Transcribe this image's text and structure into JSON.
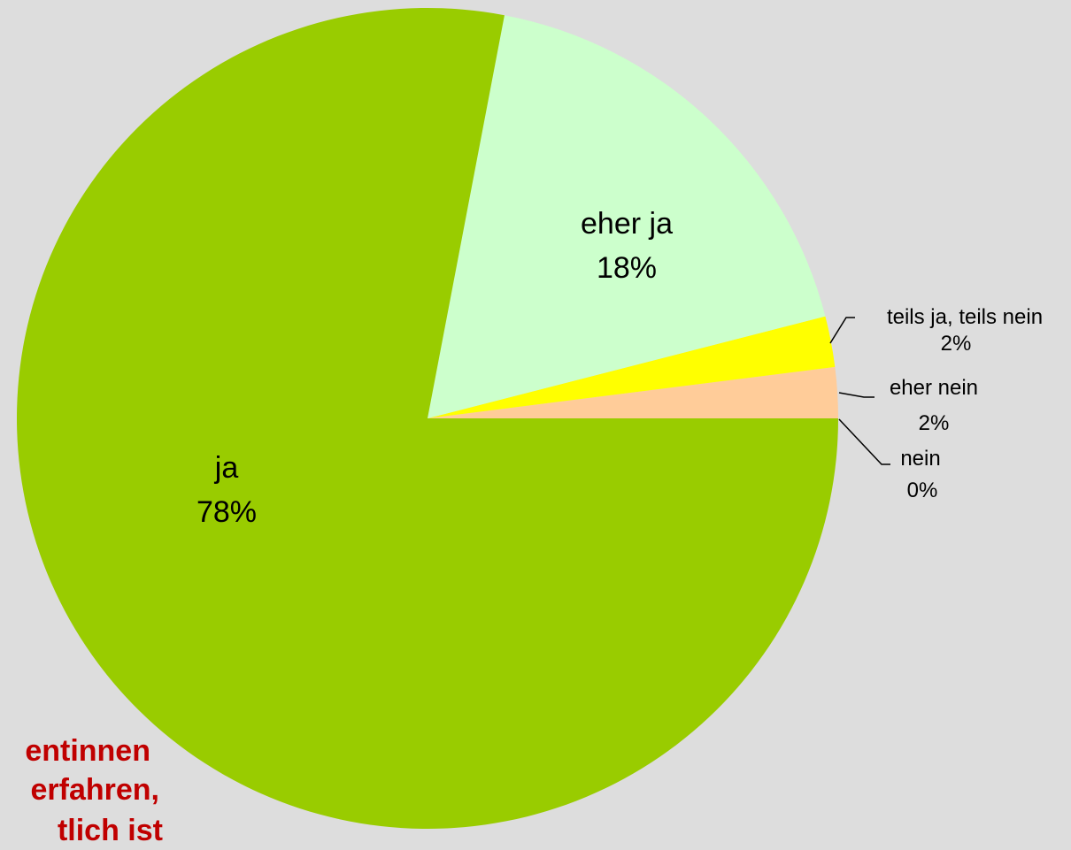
{
  "chart_data": {
    "type": "pie",
    "slices": [
      {
        "label": "ja",
        "value": 78,
        "pct_label": "78%",
        "color": "#99cc00"
      },
      {
        "label": "eher ja",
        "value": 18,
        "pct_label": "18%",
        "color": "#ccffcc"
      },
      {
        "label": "teils ja, teils nein",
        "value": 2,
        "pct_label": "2%",
        "color": "#ffff00"
      },
      {
        "label": "eher nein",
        "value": 2,
        "pct_label": "2%",
        "color": "#ffcc99"
      },
      {
        "label": "nein",
        "value": 0,
        "pct_label": "0%",
        "color": "#ff9999"
      }
    ]
  },
  "overlay_text": {
    "line1": "entinnen",
    "line2": "erfahren,",
    "line3": "tlich ist"
  },
  "colors": {
    "background": "#dddddd",
    "overlay_text": "#c00000"
  }
}
